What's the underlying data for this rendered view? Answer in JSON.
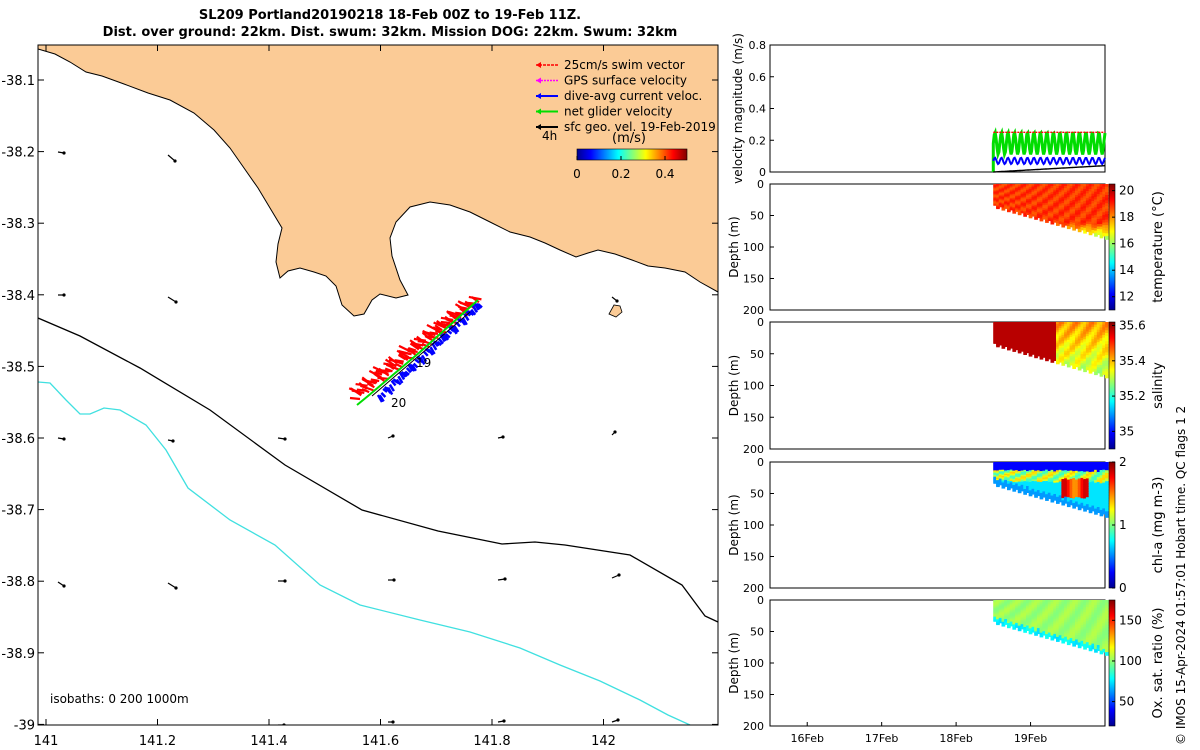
{
  "title_line1": "SL209 Portland20190218 18-Feb 00Z to 19-Feb 11Z.",
  "title_line2": "Dist. over ground: 22km. Dist. swum: 32km. Mission DOG: 22km. Swum: 32km",
  "side_note": "© IMOS 15-Apr-2024 01:57:01 Hobart time. QC flags 1  2",
  "colors": {
    "land": "#fbcb96",
    "swim_vector": "#ff0000",
    "gps_velocity": "#ff00ff",
    "current": "#0000ff",
    "net_velocity": "#00dd00",
    "geo_velocity": "#000000",
    "isobath_200": "#000000",
    "isobath_1000": "#40e0e0"
  },
  "chart_data": [
    {
      "type": "map",
      "x_ticks": [
        "141",
        "141.2",
        "141.4",
        "141.6",
        "141.8",
        "142"
      ],
      "y_ticks": [
        "-38.1",
        "-38.2",
        "-38.3",
        "-38.4",
        "-38.5",
        "-38.6",
        "-38.7",
        "-38.8",
        "-38.9",
        "-39"
      ],
      "legend": [
        "25cm/s swim vector",
        "GPS surface velocity",
        "dive-avg current veloc.",
        "net glider velocity",
        "sfc geo. vel. 19-Feb-2019"
      ],
      "legend_placement": "top-right",
      "time_label": "4h",
      "colorbar": {
        "label": "(m/s)",
        "ticks": [
          "0",
          "0.2",
          "0.4"
        ],
        "range": [
          0,
          0.5
        ]
      },
      "track_labels": [
        "19",
        "20"
      ],
      "isobath_note": "isobaths: 0   200  1000m"
    },
    {
      "type": "line",
      "ylabel": "velocity magnitude (m/s)",
      "y_ticks": [
        "0",
        "0.2",
        "0.4",
        "0.6",
        "0.8"
      ],
      "ylim": [
        0,
        0.8
      ],
      "xlim": [
        0,
        4.5
      ],
      "series": [
        {
          "color": "#00dd00",
          "x_start": 3.0,
          "x_end": 4.5,
          "base": 0.18,
          "amp": 0.07
        },
        {
          "color": "#0000ff",
          "x_start": 3.0,
          "x_end": 4.5,
          "base": 0.07,
          "amp": 0.02
        },
        {
          "color": "#ff0000",
          "x_start": 3.0,
          "x_end": 4.5,
          "base": 0.25,
          "amp": 0.0
        },
        {
          "color": "#000000",
          "x_start": 3.0,
          "x_end": 4.5,
          "base": 0.0,
          "amp": 0.0,
          "end_value": 0.04
        }
      ]
    },
    {
      "type": "heatmap",
      "ylabel": "Depth (m)",
      "y_ticks": [
        "0",
        "50",
        "100",
        "150",
        "200"
      ],
      "colorbar_label": "temperature (°C)",
      "colorbar_ticks": [
        "12",
        "14",
        "16",
        "18",
        "20"
      ],
      "colorbar_range": [
        11,
        20.5
      ],
      "dominant_value": 18.8
    },
    {
      "type": "heatmap",
      "ylabel": "Depth (m)",
      "y_ticks": [
        "0",
        "50",
        "100",
        "150",
        "200"
      ],
      "colorbar_label": "salinity",
      "colorbar_ticks": [
        "35",
        "35.2",
        "35.4",
        "35.6"
      ],
      "colorbar_range": [
        34.9,
        35.62
      ],
      "dominant_value": 35.58
    },
    {
      "type": "heatmap",
      "ylabel": "Depth (m)",
      "y_ticks": [
        "0",
        "50",
        "100",
        "150",
        "200"
      ],
      "colorbar_label": "chl-a (mg m-3)",
      "colorbar_ticks": [
        "0",
        "1",
        "2"
      ],
      "colorbar_range": [
        0,
        2
      ]
    },
    {
      "type": "heatmap",
      "ylabel": "Depth (m)",
      "y_ticks": [
        "0",
        "50",
        "100",
        "150",
        "200"
      ],
      "x_ticks": [
        "16Feb",
        "17Feb",
        "18Feb",
        "19Feb"
      ],
      "colorbar_label": "Ox. sat. ratio (%)",
      "colorbar_ticks": [
        "50",
        "100",
        "150"
      ],
      "colorbar_range": [
        20,
        175
      ],
      "dominant_value": 102
    }
  ]
}
